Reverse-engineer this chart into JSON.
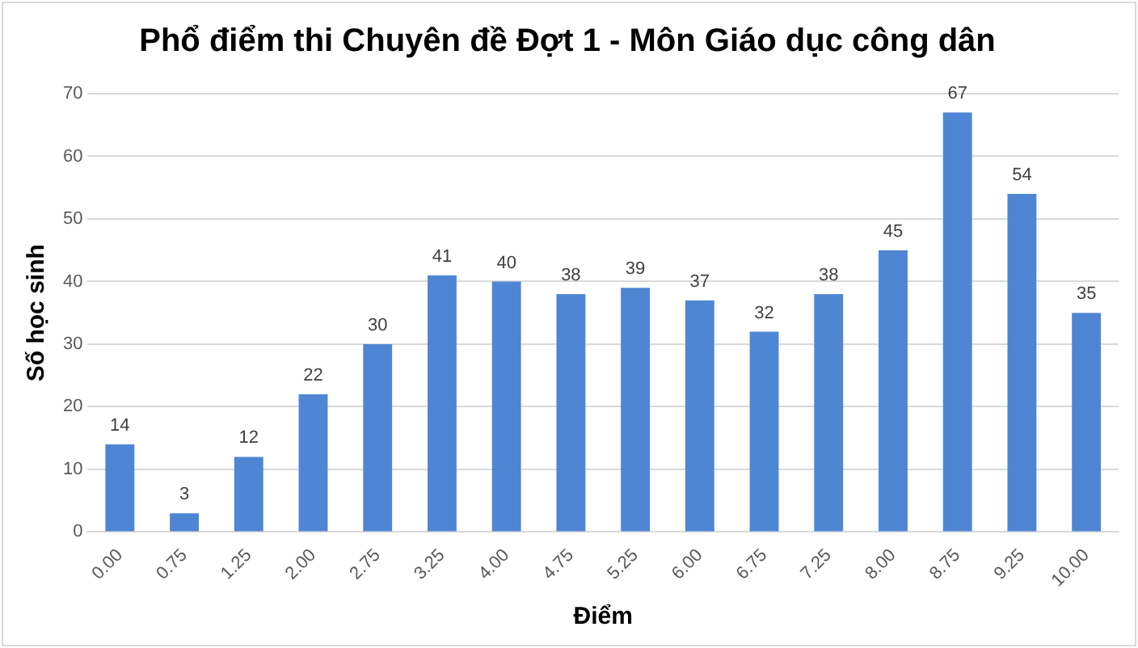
{
  "chart_data": {
    "type": "bar",
    "title": "Phổ điểm thi Chuyên đề Đợt 1 - Môn Giáo dục công dân",
    "xlabel": "Điểm",
    "ylabel": "Số học sinh",
    "categories": [
      "0.00",
      "0.75",
      "1.25",
      "2.00",
      "2.75",
      "3.25",
      "4.00",
      "4.75",
      "5.25",
      "6.00",
      "6.75",
      "7.25",
      "8.00",
      "8.75",
      "9.25",
      "10.00"
    ],
    "values": [
      14,
      3,
      12,
      22,
      30,
      41,
      40,
      38,
      39,
      37,
      32,
      38,
      45,
      67,
      54,
      35
    ],
    "color": "#4f86d4",
    "ylim": [
      0,
      70
    ],
    "yticks": [
      0,
      10,
      20,
      30,
      40,
      50,
      60,
      70
    ],
    "grid": "y",
    "data_labels": true
  }
}
